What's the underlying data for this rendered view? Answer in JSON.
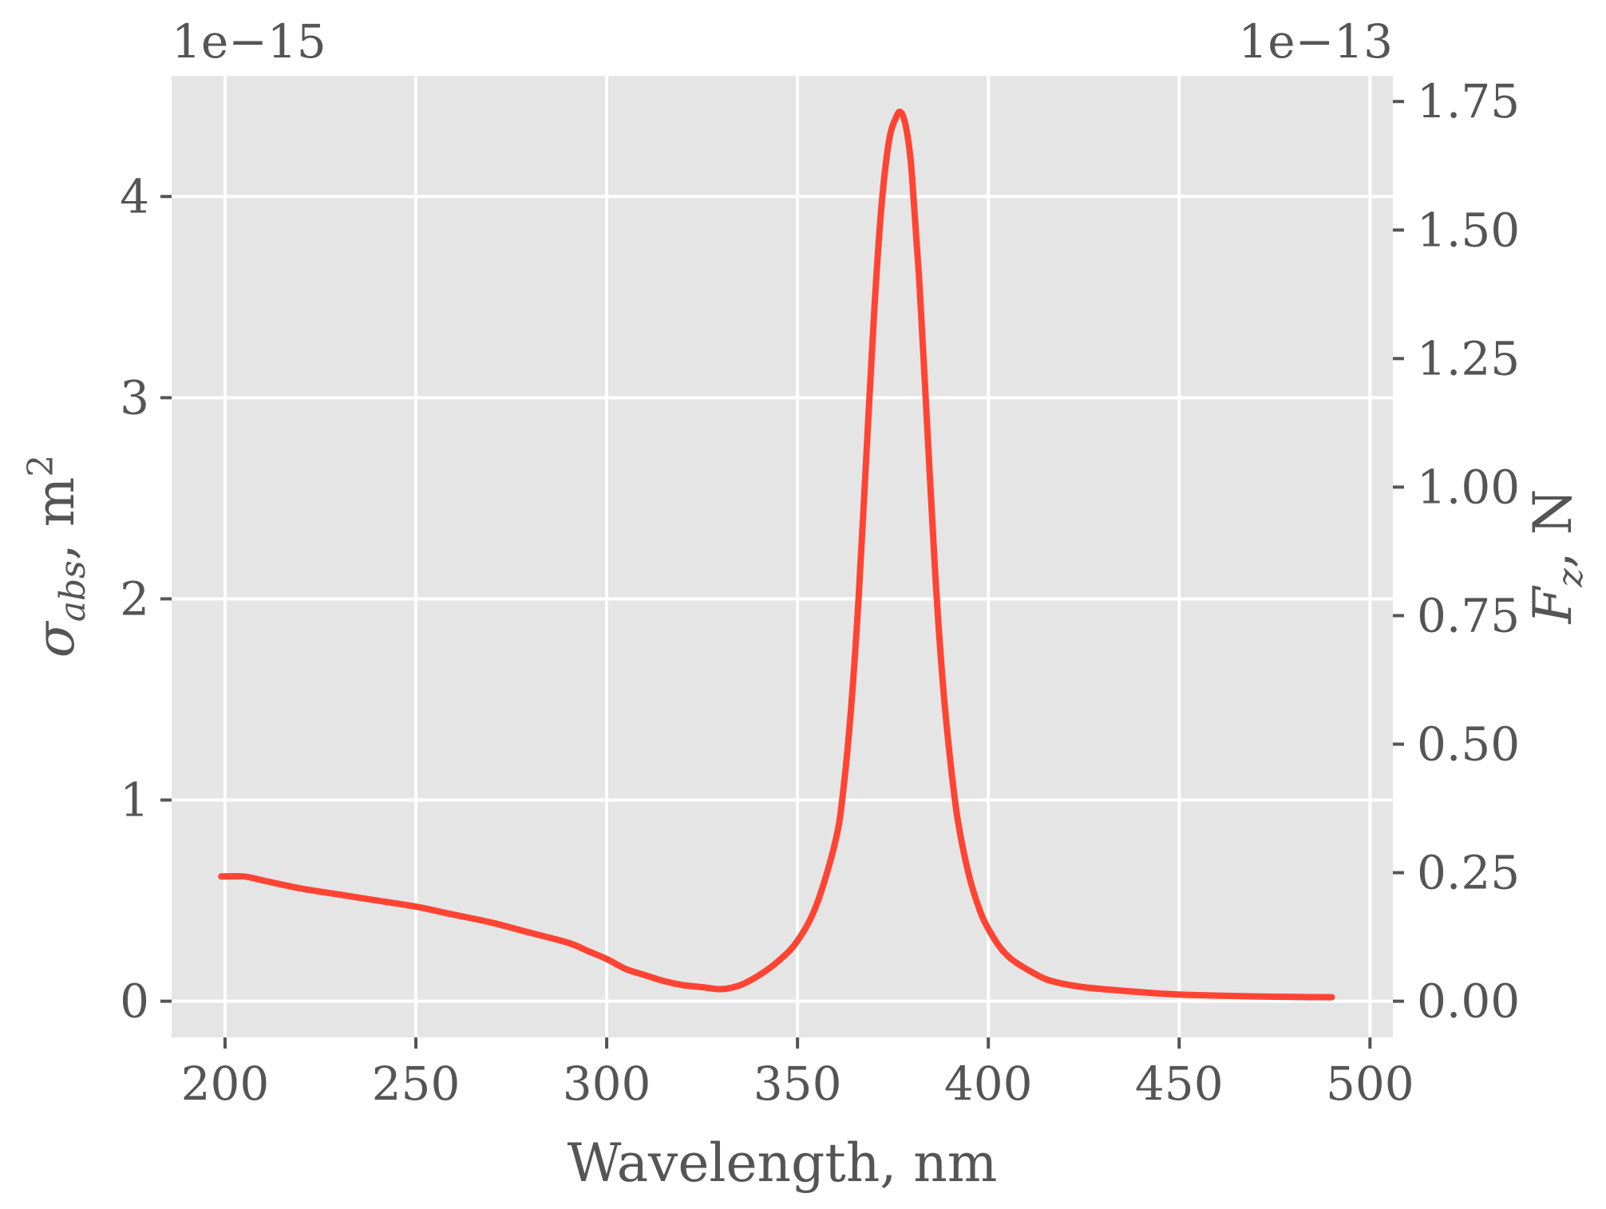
{
  "chart_data": {
    "type": "line",
    "title": "",
    "xlabel": "Wavelength, nm",
    "ylabel_left": {
      "symbol": "σ",
      "subscript": "abs",
      "unit_suffix": ", m",
      "superscript": "2"
    },
    "ylabel_right": {
      "symbol": "F",
      "subscript": "z",
      "unit_suffix": ", N"
    },
    "left_offset_text": "1e−15",
    "right_offset_text": "1e−13",
    "xlim": [
      186,
      506
    ],
    "ylim_left": [
      -0.18,
      4.6
    ],
    "ylim_right": [
      -0.0704,
      1.8
    ],
    "x_ticks": [
      200,
      250,
      300,
      350,
      400,
      450,
      500
    ],
    "x_tick_labels": [
      "200",
      "250",
      "300",
      "350",
      "400",
      "450",
      "500"
    ],
    "y_left_ticks": [
      0,
      1,
      2,
      3,
      4
    ],
    "y_left_tick_labels": [
      "0",
      "1",
      "2",
      "3",
      "4"
    ],
    "y_right_ticks": [
      0,
      0.25,
      0.5,
      0.75,
      1.0,
      1.25,
      1.5,
      1.75
    ],
    "y_right_tick_labels": [
      "0.00",
      "0.25",
      "0.50",
      "0.75",
      "1.00",
      "1.25",
      "1.50",
      "1.75"
    ],
    "grid": true,
    "background_color": "#e5e5e5",
    "series": [
      {
        "color": "#ff4433",
        "x": [
          199,
          205,
          210,
          220,
          230,
          240,
          250,
          260,
          270,
          280,
          290,
          295,
          300,
          305,
          310,
          315,
          320,
          325,
          330,
          335,
          340,
          345,
          350,
          355,
          360,
          362,
          364,
          366,
          368,
          370,
          372,
          374,
          376,
          377,
          378,
          379,
          380,
          382,
          384,
          386,
          388,
          390,
          392,
          395,
          398,
          400,
          403,
          406,
          410,
          415,
          420,
          425,
          430,
          440,
          450,
          460,
          470,
          480,
          490
        ],
        "y": [
          0.62,
          0.62,
          0.6,
          0.56,
          0.53,
          0.5,
          0.47,
          0.43,
          0.39,
          0.34,
          0.29,
          0.25,
          0.21,
          0.16,
          0.13,
          0.1,
          0.08,
          0.07,
          0.06,
          0.08,
          0.13,
          0.2,
          0.3,
          0.48,
          0.8,
          1.05,
          1.45,
          2.0,
          2.7,
          3.4,
          3.95,
          4.28,
          4.4,
          4.42,
          4.38,
          4.28,
          4.1,
          3.55,
          2.85,
          2.15,
          1.6,
          1.2,
          0.9,
          0.62,
          0.44,
          0.36,
          0.27,
          0.21,
          0.16,
          0.11,
          0.085,
          0.07,
          0.06,
          0.045,
          0.033,
          0.028,
          0.024,
          0.021,
          0.02
        ]
      }
    ]
  }
}
